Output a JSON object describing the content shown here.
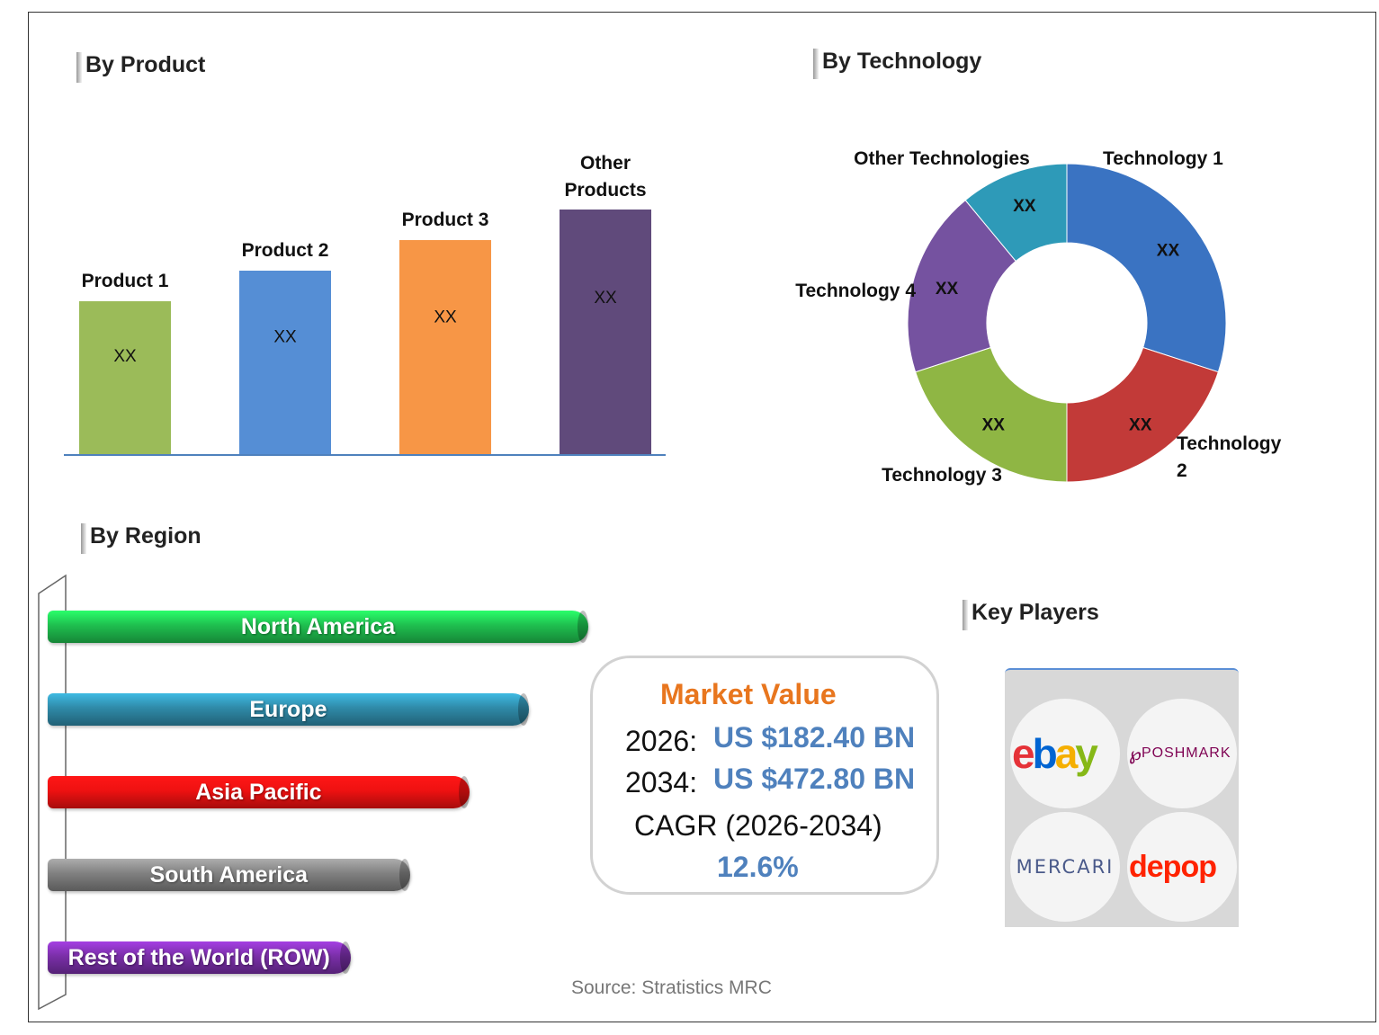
{
  "sections": {
    "product": "By Product",
    "technology": "By Technology",
    "region": "By Region",
    "players": "Key Players"
  },
  "chart_data": [
    {
      "type": "bar",
      "title": "By Product",
      "categories": [
        "Product 1",
        "Product 2",
        "Product 3",
        "Other Products"
      ],
      "values": [
        1.0,
        1.2,
        1.4,
        1.6
      ],
      "data_labels": [
        "XX",
        "XX",
        "XX",
        "XX"
      ],
      "colors": [
        "#9bbb59",
        "#558ed5",
        "#f79646",
        "#604a7b"
      ],
      "grid": false
    },
    {
      "type": "pie",
      "title": "By Technology",
      "labels": [
        "Technology 1",
        "Technology 2",
        "Technology 3",
        "Technology 4",
        "Other Technologies"
      ],
      "values": [
        30,
        20,
        20,
        19,
        11
      ],
      "data_labels": [
        "XX",
        "XX",
        "XX",
        "XX",
        "XX"
      ],
      "colors": [
        "#3a73c2",
        "#c23a38",
        "#8fb644",
        "#7552a0",
        "#2e9ab8"
      ]
    },
    {
      "type": "bar",
      "title": "By Region",
      "orientation": "horizontal",
      "categories": [
        "North America",
        "Europe",
        "Asia Pacific",
        "South America",
        "Rest of the World (ROW)"
      ],
      "values": [
        100,
        89,
        78,
        67,
        56
      ],
      "colors": [
        "#1fbf4f",
        "#2f8aa8",
        "#ee1111",
        "#808080",
        "#7a2fa8"
      ]
    }
  ],
  "market": {
    "title": "Market Value",
    "year1": "2026:",
    "value1": "US $182.40 BN",
    "year2": "2034:",
    "value2": "US $472.80 BN",
    "cagr_label": "CAGR (2026-2034)",
    "cagr_value": "12.6%"
  },
  "players": [
    {
      "name": "ebay",
      "icon": "ebay-logo"
    },
    {
      "name": "POSHMARK",
      "icon": "poshmark-logo"
    },
    {
      "name": "MERCARI",
      "icon": "mercari-logo"
    },
    {
      "name": "depop",
      "icon": "depop-logo"
    }
  ],
  "source": "Source: Stratistics MRC"
}
